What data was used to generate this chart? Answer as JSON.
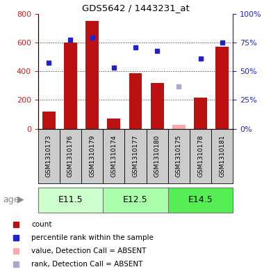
{
  "title": "GDS5642 / 1443231_at",
  "samples": [
    "GSM1310173",
    "GSM1310176",
    "GSM1310179",
    "GSM1310174",
    "GSM1310177",
    "GSM1310180",
    "GSM1310175",
    "GSM1310178",
    "GSM1310181"
  ],
  "counts": [
    120,
    600,
    750,
    70,
    385,
    320,
    null,
    215,
    570
  ],
  "ranks": [
    460,
    620,
    635,
    425,
    565,
    540,
    null,
    490,
    600
  ],
  "absent_count": [
    null,
    null,
    null,
    null,
    null,
    null,
    30,
    null,
    null
  ],
  "absent_rank": [
    null,
    null,
    null,
    null,
    null,
    null,
    295,
    null,
    null
  ],
  "age_groups": [
    {
      "label": "E11.5",
      "start": 0,
      "end": 3,
      "color": "#ccffcc"
    },
    {
      "label": "E12.5",
      "start": 3,
      "end": 6,
      "color": "#aaffaa"
    },
    {
      "label": "E14.5",
      "start": 6,
      "end": 9,
      "color": "#55ee55"
    }
  ],
  "ylim_left": [
    0,
    800
  ],
  "ylim_right": [
    0,
    100
  ],
  "bar_color": "#bb1111",
  "rank_color": "#2222cc",
  "absent_count_color": "#ffaaaa",
  "absent_rank_color": "#aaaacc",
  "grid_color": "#333333",
  "sample_bg_color": "#cccccc",
  "left_tick_color": "#cc2222",
  "right_tick_color": "#2222cc",
  "legend_items": [
    {
      "label": "count",
      "color": "#bb1111"
    },
    {
      "label": "percentile rank within the sample",
      "color": "#2222cc"
    },
    {
      "label": "value, Detection Call = ABSENT",
      "color": "#ffaaaa"
    },
    {
      "label": "rank, Detection Call = ABSENT",
      "color": "#aaaacc"
    }
  ],
  "age_label": "age",
  "yticks_left": [
    0,
    200,
    400,
    600,
    800
  ],
  "yticks_right": [
    0,
    25,
    50,
    75,
    100
  ],
  "right_tick_labels": [
    "0%",
    "25%",
    "50%",
    "75%",
    "100%"
  ]
}
